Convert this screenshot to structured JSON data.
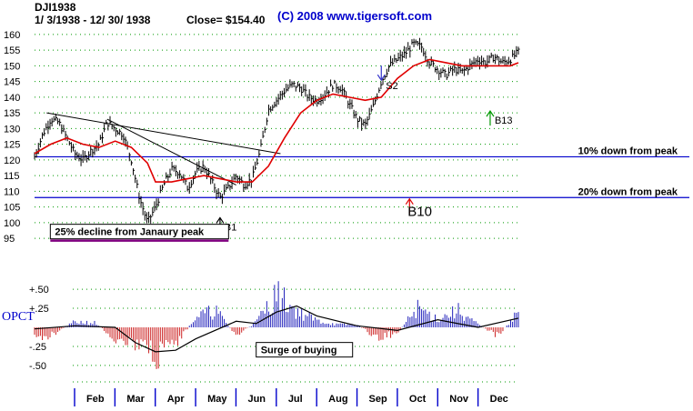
{
  "header": {
    "symbol": "DJI1938",
    "date_range": "1/ 3/1938 -  12/ 30/ 1938",
    "close_label": "Close= $154.40",
    "copyright": "(C) 2008  www.tigersoft.com"
  },
  "colors": {
    "price_bars": "#000000",
    "moving_average": "#e00000",
    "reference_line": "#0000cc",
    "trendline": "#000000",
    "grid_dots": "#009900",
    "osc_positive": "#2222bb",
    "osc_negative": "#cc2222",
    "osc_average": "#000000",
    "signal_buy": "#009900",
    "signal_sell": "#3333cc",
    "b10_marker": "#dd0000",
    "annotation_underline": "#800080",
    "month_tick": "#0000cc"
  },
  "chart_data": [
    {
      "type": "bar",
      "subtype": "ohlc-price-with-moving-average",
      "title": "DJI1938",
      "y_ticks": [
        160,
        155,
        150,
        145,
        140,
        135,
        130,
        125,
        120,
        115,
        110,
        105,
        100,
        95
      ],
      "ylim": [
        93,
        162
      ],
      "xlim": [
        0,
        12
      ],
      "x_ticks": [
        "Feb",
        "Mar",
        "Apr",
        "May",
        "Jun",
        "Jul",
        "Aug",
        "Sep",
        "Oct",
        "Nov",
        "Dec"
      ],
      "close": 154.4,
      "price": {
        "x": [
          0.0,
          0.2,
          0.4,
          0.6,
          0.8,
          1.0,
          1.2,
          1.4,
          1.6,
          1.8,
          2.0,
          2.2,
          2.4,
          2.6,
          2.8,
          3.0,
          3.2,
          3.4,
          3.6,
          3.8,
          4.0,
          4.2,
          4.4,
          4.6,
          4.8,
          5.0,
          5.2,
          5.4,
          5.6,
          5.8,
          6.0,
          6.2,
          6.4,
          6.6,
          6.8,
          7.0,
          7.2,
          7.4,
          7.6,
          7.8,
          8.0,
          8.2,
          8.4,
          8.6,
          8.8,
          9.0,
          9.2,
          9.4,
          9.6,
          9.8,
          10.0,
          10.2,
          10.4,
          10.6,
          10.8,
          11.0,
          11.2,
          11.4,
          11.6,
          11.8,
          12.0
        ],
        "values": [
          121,
          128,
          133,
          132,
          127,
          122,
          120,
          123,
          125,
          132,
          130,
          128,
          120,
          108,
          100,
          105,
          112,
          117,
          116,
          111,
          116,
          118,
          113,
          108,
          111,
          115,
          112,
          114,
          123,
          136,
          139,
          142,
          144,
          143,
          140,
          139,
          141,
          144,
          143,
          138,
          133,
          131,
          137,
          145,
          150,
          152,
          154,
          157,
          156,
          151,
          149,
          147,
          149,
          148,
          150,
          152,
          151,
          153,
          151,
          152,
          154.4
        ]
      },
      "moving_average": {
        "x": [
          0.0,
          0.4,
          0.8,
          1.2,
          1.6,
          2.0,
          2.4,
          2.8,
          3.0,
          3.4,
          3.8,
          4.2,
          4.6,
          5.0,
          5.4,
          5.8,
          6.2,
          6.6,
          7.0,
          7.4,
          7.8,
          8.2,
          8.6,
          9.0,
          9.4,
          9.8,
          10.2,
          10.6,
          11.0,
          11.4,
          11.8,
          12.0
        ],
        "values": [
          122,
          125,
          127,
          125,
          124,
          126,
          124,
          119,
          113,
          113,
          114,
          115,
          114,
          113,
          113,
          118,
          127,
          135,
          139,
          141,
          140,
          139,
          140,
          146,
          150,
          152,
          151,
          150,
          150,
          150,
          150,
          151
        ]
      },
      "reference_lines": [
        {
          "value": 121,
          "label": "10% down from peak"
        },
        {
          "value": 108,
          "label": "20% down from peak"
        }
      ],
      "trendlines": [
        {
          "x": [
            0.3,
            6.1
          ],
          "y": [
            135,
            122
          ]
        },
        {
          "x": [
            1.8,
            5.0
          ],
          "y": [
            133,
            112
          ]
        }
      ],
      "annotations": [
        {
          "text": "25% decline from Janaury peak",
          "x": 1.0,
          "y": 96
        }
      ],
      "signals": [
        {
          "label": "B1",
          "type": "buy",
          "x": 4.6,
          "y": 101
        },
        {
          "label": "S2",
          "type": "sell",
          "x": 8.6,
          "y": 146
        },
        {
          "label": "B10",
          "type": "buy",
          "x": 9.3,
          "y": 107
        },
        {
          "label": "B13",
          "type": "buy",
          "x": 11.3,
          "y": 135
        }
      ]
    },
    {
      "type": "bar",
      "subtype": "oscillator",
      "title": "",
      "ylabel": "OPCT",
      "y_ticks": [
        {
          "value": 0.5,
          "label": "+.50"
        },
        {
          "value": 0.25,
          "label": "+.25"
        },
        {
          "value": -0.25,
          "label": "-.25"
        },
        {
          "value": -0.5,
          "label": "-.50"
        }
      ],
      "ylim": [
        -0.62,
        0.62
      ],
      "xlim": [
        0,
        12
      ],
      "x": [
        0.0,
        0.5,
        1.0,
        1.5,
        2.0,
        2.5,
        3.0,
        3.5,
        4.0,
        4.5,
        5.0,
        5.5,
        6.0,
        6.5,
        7.0,
        7.5,
        8.0,
        8.5,
        9.0,
        9.5,
        10.0,
        10.5,
        11.0,
        11.5,
        12.0
      ],
      "values": [
        -0.25,
        -0.1,
        0.1,
        0.08,
        -0.2,
        -0.3,
        -0.55,
        -0.35,
        0.2,
        0.3,
        -0.15,
        0.1,
        0.6,
        0.3,
        0.12,
        0.05,
        0.05,
        -0.2,
        -0.1,
        0.35,
        0.15,
        0.3,
        0.05,
        -0.15,
        0.3
      ],
      "average": {
        "x": [
          0.0,
          1.0,
          2.0,
          2.5,
          3.0,
          3.5,
          4.0,
          5.0,
          5.5,
          6.0,
          6.5,
          7.0,
          8.0,
          9.0,
          10.0,
          11.0,
          12.0
        ],
        "values": [
          -0.02,
          0.02,
          0.0,
          -0.2,
          -0.32,
          -0.3,
          -0.15,
          0.08,
          0.05,
          0.2,
          0.28,
          0.15,
          0.02,
          -0.04,
          0.1,
          0.0,
          0.12
        ]
      },
      "annotations": [
        {
          "text": "Surge of buying",
          "x": 5.7,
          "y": -0.27
        }
      ]
    }
  ]
}
